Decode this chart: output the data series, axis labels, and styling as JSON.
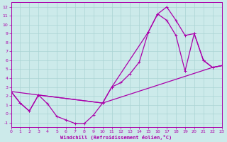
{
  "xlabel": "Windchill (Refroidissement éolien,°C)",
  "xlim": [
    0,
    23
  ],
  "ylim": [
    -1.5,
    12.5
  ],
  "xticks": [
    0,
    1,
    2,
    3,
    4,
    5,
    6,
    7,
    8,
    9,
    10,
    11,
    12,
    13,
    14,
    15,
    16,
    17,
    18,
    19,
    20,
    21,
    22,
    23
  ],
  "yticks": [
    -1,
    0,
    1,
    2,
    3,
    4,
    5,
    6,
    7,
    8,
    9,
    10,
    11,
    12
  ],
  "bg_color": "#cceaea",
  "line_color": "#aa00aa",
  "grid_color": "#aad4d4",
  "curve1_x": [
    0,
    1,
    2,
    3,
    4,
    5,
    6,
    7,
    8,
    9,
    10,
    11,
    12,
    13,
    14,
    15,
    16,
    17,
    18,
    19,
    20,
    21,
    22,
    23
  ],
  "curve1_y": [
    2.5,
    1.2,
    0.3,
    2.1,
    1.1,
    -0.3,
    -0.7,
    -1.1,
    -1.1,
    -0.15,
    1.2,
    3.0,
    3.5,
    4.5,
    5.8,
    9.2,
    11.2,
    12.0,
    10.5,
    8.8,
    9.0,
    6.0,
    5.2,
    5.4
  ],
  "curve2_x": [
    0,
    1,
    2,
    3,
    10,
    11,
    15,
    16,
    17,
    18,
    19,
    20,
    21,
    22,
    23
  ],
  "curve2_y": [
    2.5,
    1.2,
    0.3,
    2.1,
    1.2,
    3.0,
    9.2,
    11.2,
    10.5,
    8.8,
    4.8,
    9.0,
    6.0,
    5.2,
    5.4
  ],
  "curve3_x": [
    0,
    3,
    10,
    22,
    23
  ],
  "curve3_y": [
    2.5,
    2.1,
    1.2,
    5.2,
    5.4
  ],
  "marker_size": 2.5,
  "line_width": 0.9
}
